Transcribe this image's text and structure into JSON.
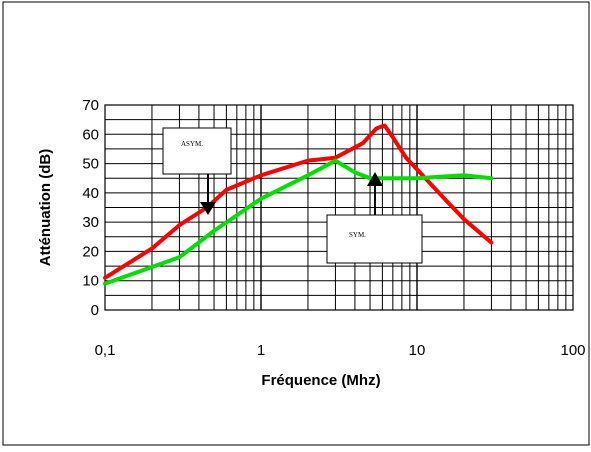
{
  "chart_data": {
    "type": "line",
    "xlabel": "Fréquence (Mhz)",
    "ylabel": "Atténuation (dB)",
    "xscale": "log",
    "xlim": [
      0.1,
      100
    ],
    "ylim": [
      0,
      70
    ],
    "grid": true,
    "x_tick_labels": [
      "0,1",
      "1",
      "10",
      "100"
    ],
    "y_tick_labels": [
      "0",
      "10",
      "20",
      "30",
      "40",
      "50",
      "60",
      "70"
    ],
    "series": [
      {
        "name": "ASYM.",
        "color": "#ff0000",
        "x": [
          0.1,
          0.2,
          0.3,
          0.45,
          0.6,
          1.0,
          2.0,
          3.0,
          4.5,
          5.5,
          6.2,
          7.0,
          8.5,
          10.0,
          15.0,
          20.0,
          30.0
        ],
        "y": [
          11,
          21,
          29,
          35,
          41,
          46,
          51,
          52,
          57,
          62,
          63,
          59,
          52,
          48,
          38,
          31,
          23
        ]
      },
      {
        "name": "SYM.",
        "color": "#00e000",
        "x": [
          0.1,
          0.3,
          0.5,
          1.0,
          2.0,
          3.0,
          4.0,
          5.0,
          7.0,
          10.0,
          20.0,
          30.0
        ],
        "y": [
          9,
          18,
          27,
          38,
          46,
          51,
          47,
          45,
          45,
          45,
          46,
          45
        ]
      }
    ],
    "annotations": [
      {
        "text": "ASYM.",
        "arrow": "down",
        "series": "ASYM."
      },
      {
        "text": "SYM.",
        "arrow": "up",
        "series": "SYM."
      }
    ]
  }
}
